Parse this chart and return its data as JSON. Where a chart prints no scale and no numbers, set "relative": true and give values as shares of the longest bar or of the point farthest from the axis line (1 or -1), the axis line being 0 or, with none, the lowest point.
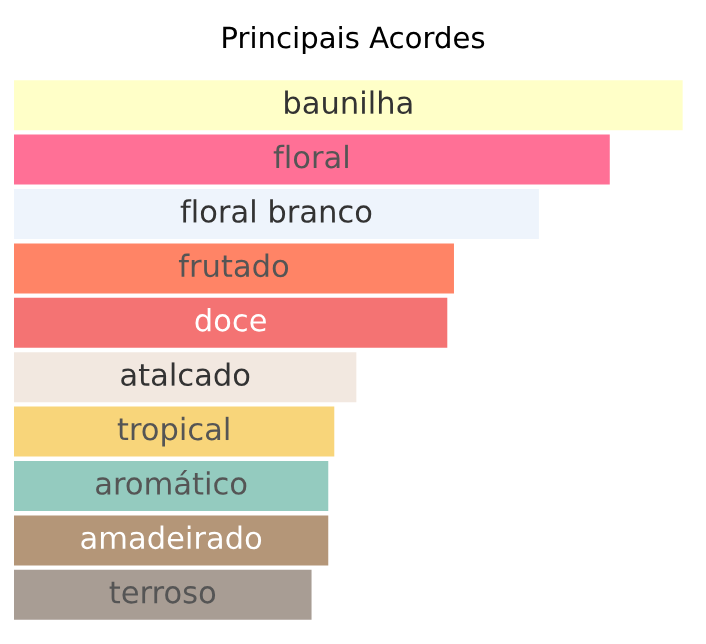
{
  "chart_data": {
    "type": "bar",
    "orientation": "horizontal",
    "relative": true,
    "title": "Principais Acordes",
    "categories": [
      "baunilha",
      "floral",
      "floral branco",
      "frutado",
      "doce",
      "atalcado",
      "tropical",
      "aromático",
      "amadeirado",
      "terroso"
    ],
    "values": [
      1,
      0.891,
      0.785,
      0.658,
      0.648,
      0.512,
      0.479,
      0.47,
      0.47,
      0.445
    ],
    "colors": [
      "#ffffc8",
      "#ff7096",
      "#eef4fc",
      "#ff8466",
      "#f47373",
      "#f2e8e0",
      "#f8d57a",
      "#94cbbf",
      "#b49678",
      "#a89d94"
    ],
    "legend": false
  }
}
